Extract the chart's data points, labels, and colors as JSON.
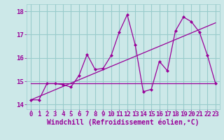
{
  "title": "",
  "xlabel": "Windchill (Refroidissement éolien,°C)",
  "bg_color": "#cce8e8",
  "grid_color": "#99cccc",
  "line_color": "#990099",
  "xlim": [
    -0.5,
    23.5
  ],
  "ylim": [
    13.8,
    18.3
  ],
  "yticks": [
    14,
    15,
    16,
    17,
    18
  ],
  "xticks": [
    0,
    1,
    2,
    3,
    4,
    5,
    6,
    7,
    8,
    9,
    10,
    11,
    12,
    13,
    14,
    15,
    16,
    17,
    18,
    19,
    20,
    21,
    22,
    23
  ],
  "main_series": [
    14.2,
    14.2,
    14.9,
    14.9,
    14.85,
    14.75,
    15.25,
    16.15,
    15.5,
    15.55,
    16.1,
    17.1,
    17.85,
    16.55,
    14.55,
    14.65,
    15.85,
    15.45,
    17.15,
    17.75,
    17.55,
    17.1,
    16.1,
    14.9
  ],
  "trend1_x": [
    0,
    23
  ],
  "trend1_y": [
    14.2,
    17.5
  ],
  "trend2_x": [
    0,
    23
  ],
  "trend2_y": [
    14.9,
    14.9
  ],
  "font_size_tick": 6.5,
  "font_size_label": 7
}
